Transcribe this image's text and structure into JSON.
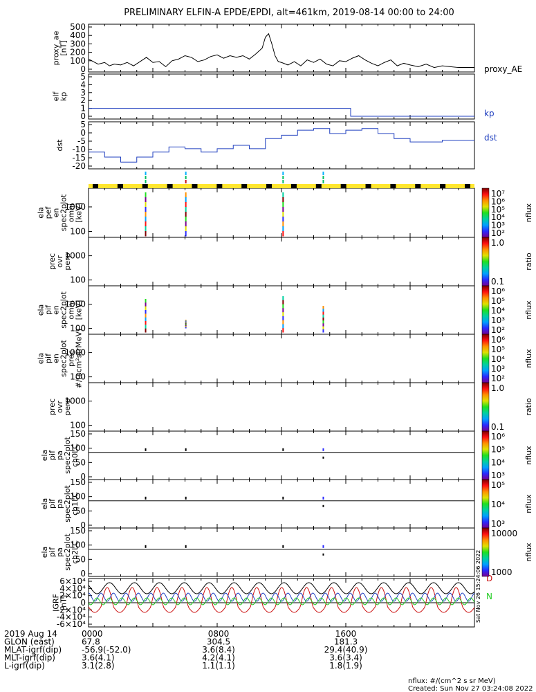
{
  "title": "PRELIMINARY ELFIN-A EPDE/EPDI, alt=461km, 2019-08-14 00:00 to 24:00",
  "panels": [
    {
      "id": "proxy_ae",
      "ylabel": [
        "proxy_ae",
        "[nT]"
      ],
      "ticks": [
        "500",
        "400",
        "300",
        "200",
        "100",
        "0"
      ],
      "legend": "proxy_AE"
    },
    {
      "id": "kp",
      "ylabel": [
        "elf",
        "kp"
      ],
      "ticks": [
        "5",
        "4",
        "3",
        "2",
        "1",
        "0"
      ],
      "legend": "kp"
    },
    {
      "id": "dst",
      "ylabel": [
        "dst"
      ],
      "ticks": [
        "5",
        "0",
        "-5",
        "-10",
        "-15",
        "-20"
      ],
      "legend": "dst"
    },
    {
      "id": "pef_en",
      "ylabel": [
        "ela",
        "pef",
        "en",
        "spec2plot",
        "omni",
        "[keV]"
      ],
      "ticks": [
        "1000",
        "100"
      ]
    },
    {
      "id": "pef_ratio",
      "ylabel": [
        "prec",
        "ovr",
        "perp"
      ],
      "ticks": [
        "1000",
        "100"
      ]
    },
    {
      "id": "pif_en",
      "ylabel": [
        "ela",
        "pif",
        "en",
        "spec2plot",
        "omni",
        "[keV]"
      ],
      "ticks": [
        "1000",
        "100"
      ]
    },
    {
      "id": "pif_flux",
      "ylabel": [
        "ela",
        "pif",
        "en",
        "spec2plot",
        "prec",
        "#/(scm²strMeV)"
      ],
      "ticks": [
        "1000",
        "100"
      ]
    },
    {
      "id": "pif_ratio",
      "ylabel": [
        "prec",
        "ovr",
        "perp"
      ],
      "ticks": [
        "1000",
        "100"
      ]
    },
    {
      "id": "ch0LC",
      "ylabel": [
        "ela",
        "pif",
        "pa",
        "spec2plot",
        "ch0LC"
      ],
      "ticks": [
        "150",
        "100",
        "50",
        "0"
      ]
    },
    {
      "id": "ch1LC",
      "ylabel": [
        "ela",
        "pif",
        "pa",
        "spec2plot",
        "ch1LC"
      ],
      "ticks": [
        "150",
        "100",
        "50",
        "0"
      ]
    },
    {
      "id": "ch2LC",
      "ylabel": [
        "ela",
        "pif",
        "pa",
        "spec2plot",
        "ch2LC"
      ],
      "ticks": [
        "150",
        "100",
        "50",
        "0"
      ]
    },
    {
      "id": "igrf",
      "ylabel": [
        "IGRF",
        "[nT]"
      ],
      "ticks": [
        "6×10⁴",
        "4×10⁴",
        "2×10⁴",
        "0",
        "-2×10⁴",
        "-4×10⁴",
        "-6×10⁴"
      ]
    }
  ],
  "colorbars": [
    {
      "ticks": [
        "10⁷",
        "10⁶",
        "10⁵",
        "10⁴",
        "10³",
        "10²"
      ],
      "label": "nflux"
    },
    {
      "ticks": [
        "1.0",
        "0.1"
      ],
      "label": "ratio"
    },
    {
      "ticks": [
        "10⁶",
        "10⁵",
        "10⁴",
        "10³",
        "10²"
      ],
      "label": "nflux"
    },
    {
      "ticks": [
        "10⁶",
        "10⁵",
        "10⁴",
        "10³",
        "10²"
      ],
      "label": "nflux"
    },
    {
      "ticks": [
        "1.0",
        "0.1"
      ],
      "label": "ratio"
    },
    {
      "ticks": [
        "10⁶",
        "10⁵",
        "10⁴",
        "10³"
      ],
      "label": "nflux"
    },
    {
      "ticks": [
        "10⁵",
        "10⁴",
        "10³"
      ],
      "label": "nflux"
    },
    {
      "ticks": [
        "10000",
        "1000"
      ],
      "label": "nflux"
    }
  ],
  "igrf_legend": [
    "D",
    "N"
  ],
  "created_vertical": "Sat Nov 26 15:24:06 2022",
  "footer": {
    "rows": [
      {
        "label": "2019 Aug 14",
        "values": [
          "0000",
          "0800",
          "1600"
        ]
      },
      {
        "label": "GLON (east)",
        "values": [
          "67.8",
          "304.5",
          "181.3"
        ]
      },
      {
        "label": "MLAT-igrf(dip)",
        "values": [
          "-56.9(-52.0)",
          "3.6(8.4)",
          "29.4(40.9)"
        ]
      },
      {
        "label": "MLT-igrf(dip)",
        "values": [
          "3.6(4.1)",
          "4.2(4.1)",
          "3.6(3.4)"
        ]
      },
      {
        "label": "L-igrf(dip)",
        "values": [
          "3.1(2.8)",
          "1.1(1.1)",
          "1.8(1.9)"
        ]
      }
    ],
    "units_note": "nflux: #/(cm^2 s sr MeV)",
    "created": "Created: Sun Nov 27 03:24:08 2022"
  },
  "colors": {
    "kp": "#1f3fbf",
    "dst": "#1f3fbf",
    "bar_yellow": "#ffe62e",
    "igrf_red": "#cc1010",
    "igrf_green": "#22cc22",
    "igrf_blue": "#1f3fbf"
  },
  "chart_data": [
    {
      "type": "line",
      "title": "proxy_AE",
      "ylabel": "proxy_ae [nT]",
      "ylim": [
        0,
        500
      ],
      "x_hours": [
        0,
        0.3,
        0.6,
        1,
        1.3,
        1.6,
        2,
        2.4,
        2.8,
        3.2,
        3.6,
        4,
        4.4,
        4.8,
        5.2,
        5.6,
        6,
        6.4,
        6.8,
        7.2,
        7.6,
        8,
        8.4,
        8.8,
        9.2,
        9.6,
        10,
        10.4,
        10.8,
        11,
        11.2,
        11.4,
        11.6,
        11.8,
        12,
        12.4,
        12.8,
        13.2,
        13.6,
        14,
        14.4,
        14.8,
        15.2,
        15.6,
        16,
        16.4,
        16.8,
        17.2,
        17.6,
        18,
        18.4,
        18.8,
        19.2,
        19.6,
        20,
        20.5,
        21,
        21.5,
        22,
        22.5,
        23,
        23.5,
        24
      ],
      "values": [
        120,
        90,
        60,
        80,
        40,
        60,
        50,
        80,
        40,
        90,
        140,
        80,
        90,
        30,
        100,
        120,
        160,
        140,
        90,
        110,
        150,
        170,
        130,
        160,
        140,
        160,
        120,
        180,
        250,
        380,
        420,
        300,
        160,
        90,
        80,
        50,
        90,
        40,
        110,
        80,
        120,
        60,
        40,
        100,
        90,
        130,
        160,
        110,
        70,
        40,
        80,
        110,
        40,
        70,
        50,
        30,
        60,
        20,
        40,
        30,
        20,
        20,
        20
      ]
    },
    {
      "type": "line",
      "title": "kp",
      "ylabel": "elf kp",
      "ylim": [
        0,
        5
      ],
      "x_hours": [
        0,
        16.3,
        16.3,
        24
      ],
      "values": [
        1,
        1,
        0,
        0
      ]
    },
    {
      "type": "line",
      "title": "dst",
      "ylabel": "dst",
      "ylim": [
        -22,
        6
      ],
      "x_hours": [
        0,
        1,
        2,
        3,
        4,
        5,
        6,
        7,
        8,
        9,
        10,
        11,
        12,
        13,
        14,
        15,
        16,
        17,
        18,
        19,
        20,
        21,
        22,
        23,
        24
      ],
      "values": [
        -12,
        -15,
        -18,
        -15,
        -12,
        -9,
        -10,
        -12,
        -10,
        -8,
        -10,
        -4,
        -2,
        1,
        2,
        -1,
        1,
        2,
        -1,
        -4,
        -6,
        -6,
        -5,
        -5,
        -5
      ]
    },
    {
      "type": "heatmap",
      "title": "ela pef en spec2plot omni",
      "ylabel": "[keV]",
      "bursts_hours": [
        3.55,
        6.05,
        12.1
      ]
    },
    {
      "type": "heatmap",
      "title": "ela pif en spec2plot omni",
      "ylabel": "[keV]",
      "bursts_hours": [
        3.55,
        6.05,
        12.1,
        14.6
      ]
    },
    {
      "type": "line",
      "title": "IGRF",
      "ylabel": "[nT]",
      "ylim": [
        -60000,
        60000
      ],
      "series": [
        {
          "name": "D"
        },
        {
          "name": "N"
        }
      ]
    }
  ]
}
